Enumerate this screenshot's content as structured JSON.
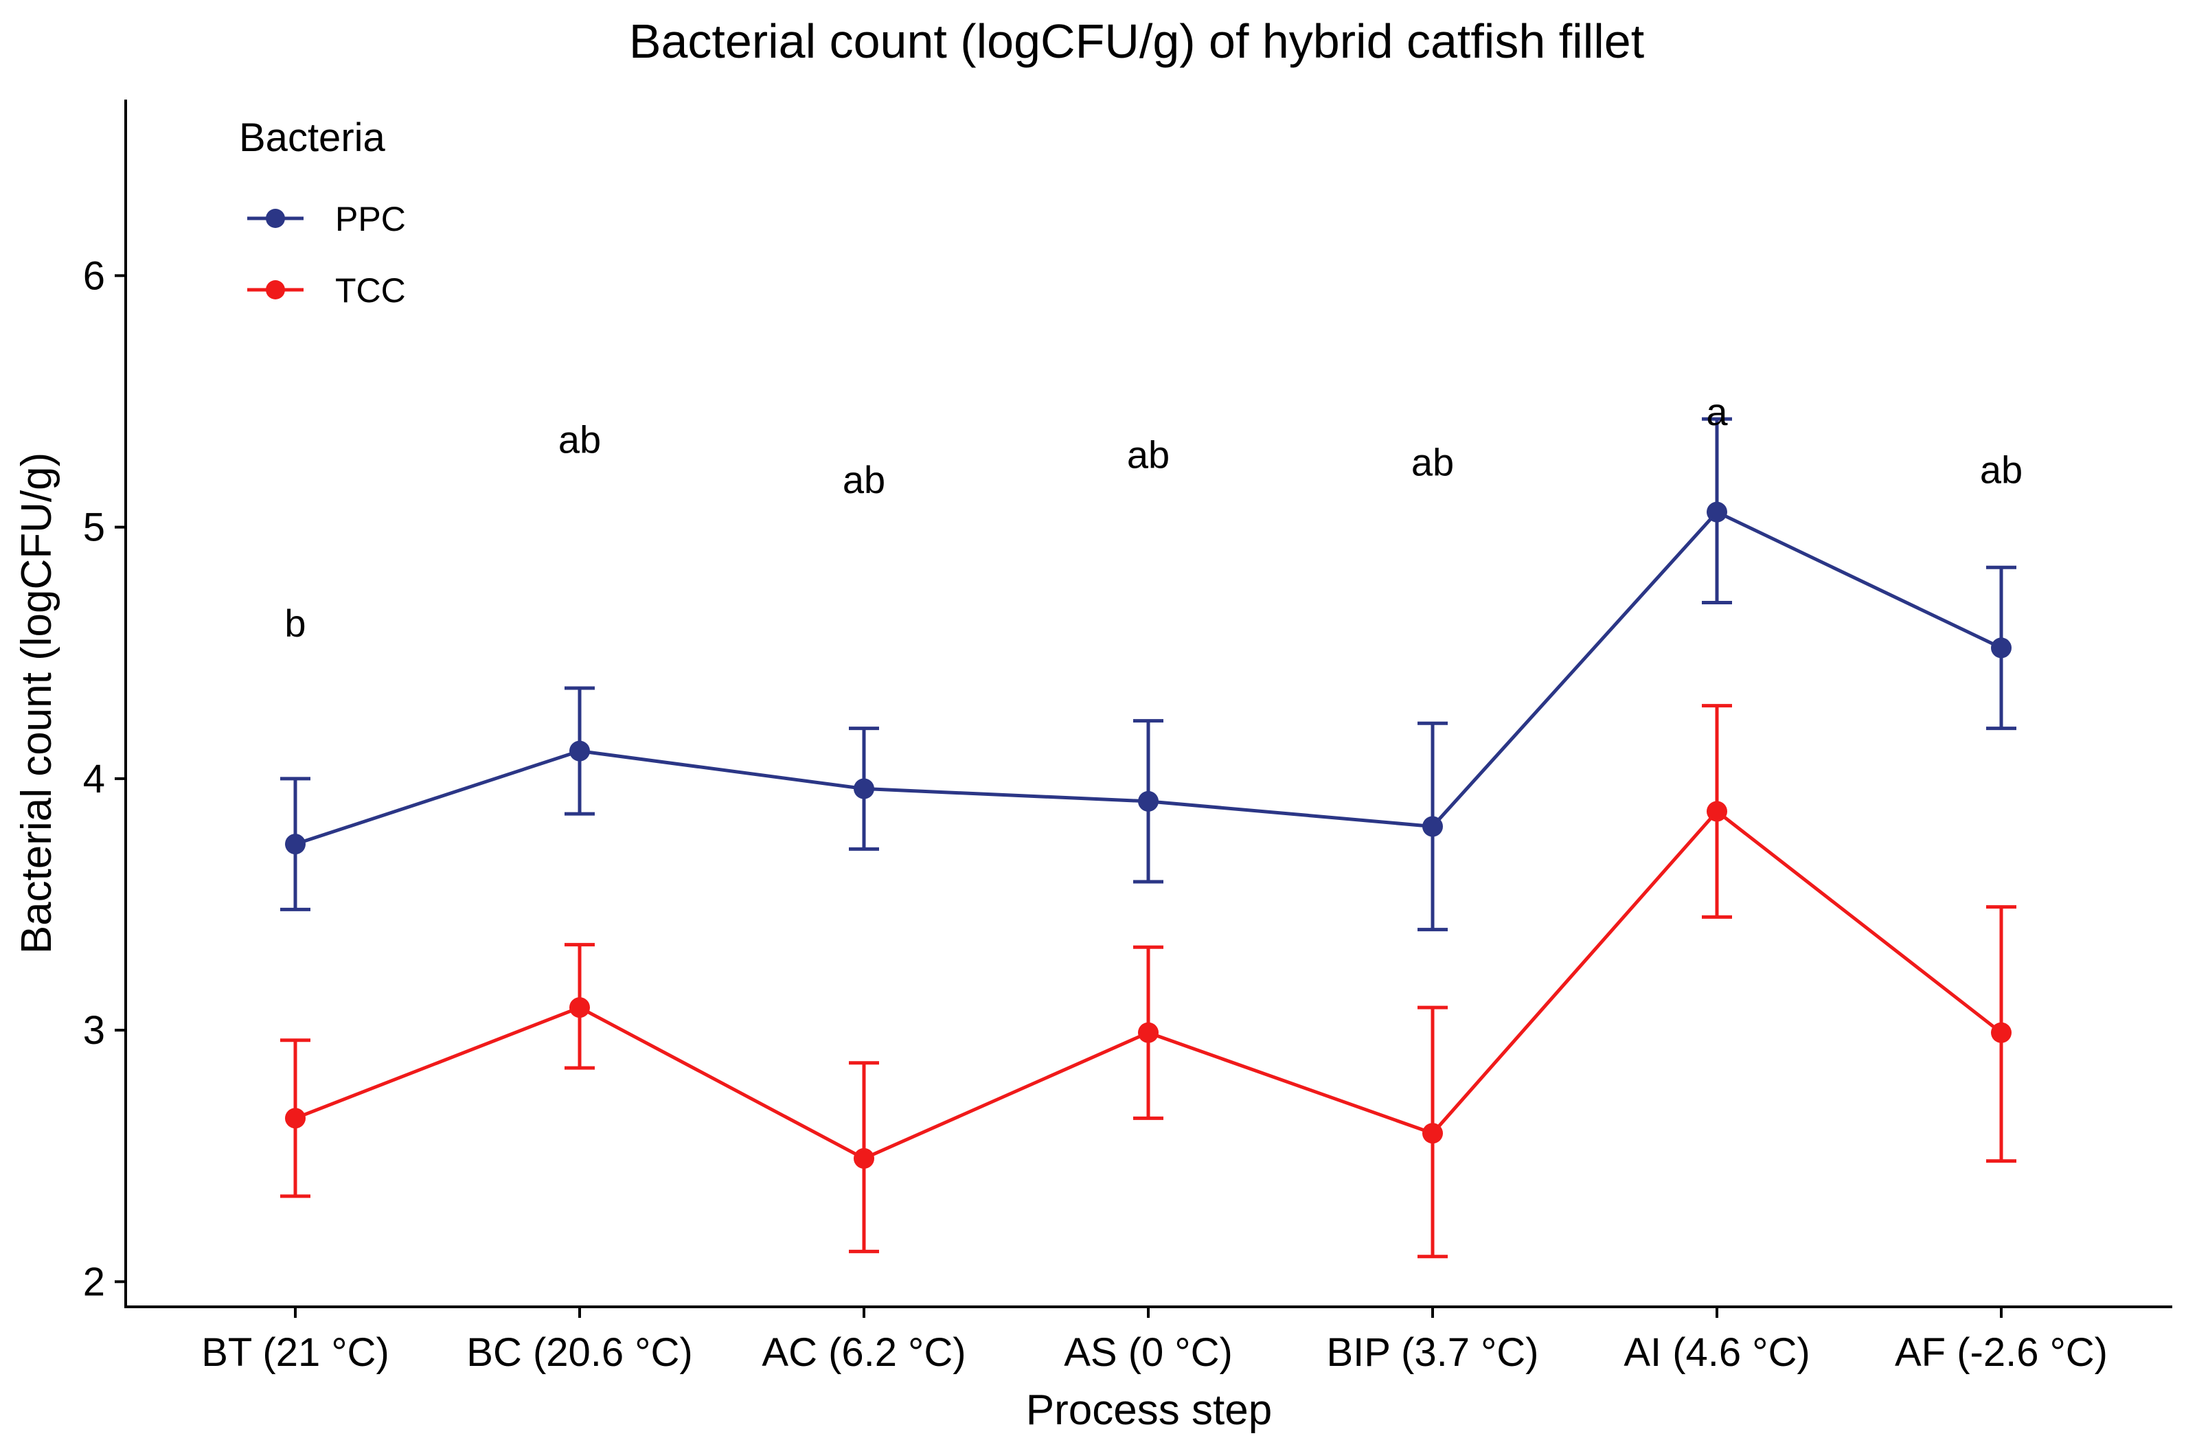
{
  "chart_data": {
    "type": "line",
    "title": "Bacterial count (logCFU/g) of hybrid catfish fillet",
    "xlabel": "Process step",
    "ylabel": "Bacterial count (logCFU/g)",
    "ylim": [
      1.9,
      6.7
    ],
    "yticks": [
      2,
      3,
      4,
      5,
      6
    ],
    "grid": false,
    "categories": [
      "BT (21 °C)",
      "BC (20.6 °C)",
      "AC (6.2 °C)",
      "AS (0 °C)",
      "BIP (3.7 °C)",
      "AI (4.6 °C)",
      "AF (-2.6 °C)"
    ],
    "legend": {
      "title": "Bacteria",
      "position": "top-left"
    },
    "series": [
      {
        "name": "PPC",
        "color": "#2b3686",
        "values": [
          3.74,
          4.11,
          3.96,
          3.91,
          3.81,
          5.06,
          4.52
        ],
        "lower": [
          3.48,
          3.86,
          3.72,
          3.59,
          3.4,
          4.7,
          4.2
        ],
        "upper": [
          4.0,
          4.36,
          4.2,
          4.23,
          4.22,
          5.43,
          4.84
        ]
      },
      {
        "name": "TCC",
        "color": "#f01a1a",
        "values": [
          2.65,
          3.09,
          2.49,
          2.99,
          2.59,
          3.87,
          2.99
        ],
        "lower": [
          2.34,
          2.85,
          2.12,
          2.65,
          2.1,
          3.45,
          2.48
        ],
        "upper": [
          2.96,
          3.34,
          2.87,
          3.33,
          3.09,
          4.29,
          3.49
        ]
      }
    ],
    "annotations": [
      {
        "category": "BT (21 °C)",
        "label": "b",
        "y": 4.62
      },
      {
        "category": "BC (20.6 °C)",
        "label": "ab",
        "y": 5.35
      },
      {
        "category": "AC (6.2 °C)",
        "label": "ab",
        "y": 5.19
      },
      {
        "category": "AS (0 °C)",
        "label": "ab",
        "y": 5.29
      },
      {
        "category": "BIP (3.7 °C)",
        "label": "ab",
        "y": 5.26
      },
      {
        "category": "AI (4.6 °C)",
        "label": "a",
        "y": 5.46
      },
      {
        "category": "AF (-2.6 °C)",
        "label": "ab",
        "y": 5.23
      }
    ]
  }
}
